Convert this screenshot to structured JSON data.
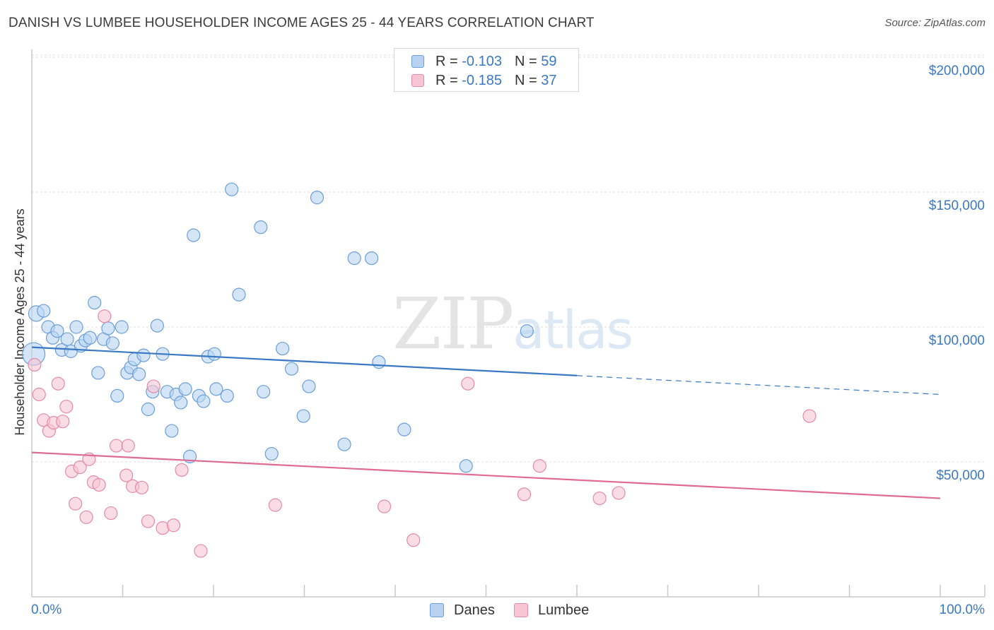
{
  "title": "DANISH VS LUMBEE HOUSEHOLDER INCOME AGES 25 - 44 YEARS CORRELATION CHART",
  "source": "Source: ZipAtlas.com",
  "watermark": {
    "zip": "ZIP",
    "atlas": "atlas"
  },
  "legend": {
    "r_label": "R =",
    "n_label": "N =",
    "danes": {
      "r": "-0.103",
      "n": "59"
    },
    "lumbee": {
      "r": "-0.185",
      "n": "37"
    }
  },
  "colors": {
    "danes_fill": "#b8d3f2",
    "danes_stroke": "#6a9ed8",
    "danes_line": "#3a78c4",
    "lumbee_fill": "#f7c4d4",
    "lumbee_stroke": "#e38aa8",
    "lumbee_line": "#e06a93",
    "axis_label": "#3a78c4",
    "grid": "#dddddd"
  },
  "chart_data": {
    "type": "scatter",
    "title": "DANISH VS LUMBEE HOUSEHOLDER INCOME AGES 25 - 44 YEARS CORRELATION CHART",
    "xlabel": "",
    "ylabel": "Householder Income Ages 25 - 44 years",
    "xlim": [
      0,
      100
    ],
    "ylim": [
      0,
      205000
    ],
    "x_tick_labels": [
      "0.0%",
      "100.0%"
    ],
    "y_ticks": [
      50000,
      100000,
      150000,
      200000
    ],
    "y_tick_labels": [
      "$50,000",
      "$100,000",
      "$150,000",
      "$200,000"
    ],
    "grid": true,
    "legend_position": "top-center",
    "series": [
      {
        "name": "Danes",
        "r": -0.103,
        "n": 59,
        "trend": {
          "x0": 0,
          "y0": 92500,
          "x1": 60,
          "y1": 82000,
          "dash_x1": 100,
          "dash_y1": 75000
        },
        "points": [
          [
            0.2,
            90000,
            16
          ],
          [
            0.5,
            105000,
            11
          ],
          [
            1.3,
            106000,
            9
          ],
          [
            1.8,
            100000,
            9
          ],
          [
            2.3,
            96000,
            9
          ],
          [
            2.8,
            98500,
            9
          ],
          [
            3.3,
            91500,
            9
          ],
          [
            3.9,
            95500,
            9
          ],
          [
            4.3,
            91000,
            9
          ],
          [
            4.9,
            100000,
            9
          ],
          [
            5.4,
            93000,
            9
          ],
          [
            5.9,
            95000,
            9
          ],
          [
            6.4,
            96000,
            9
          ],
          [
            6.9,
            109000,
            9
          ],
          [
            7.3,
            83000,
            9
          ],
          [
            7.9,
            95500,
            9
          ],
          [
            8.4,
            99500,
            9
          ],
          [
            8.9,
            94000,
            9
          ],
          [
            9.4,
            74500,
            9
          ],
          [
            9.9,
            100000,
            9
          ],
          [
            10.5,
            83000,
            9
          ],
          [
            10.9,
            85000,
            9
          ],
          [
            11.3,
            88000,
            9
          ],
          [
            11.8,
            82500,
            9
          ],
          [
            12.3,
            89500,
            9
          ],
          [
            12.8,
            69500,
            9
          ],
          [
            13.3,
            76000,
            9
          ],
          [
            13.8,
            100500,
            9
          ],
          [
            14.4,
            90000,
            9
          ],
          [
            14.9,
            76000,
            9
          ],
          [
            15.4,
            61500,
            9
          ],
          [
            15.9,
            75000,
            9
          ],
          [
            16.4,
            72000,
            9
          ],
          [
            16.9,
            77000,
            9
          ],
          [
            17.4,
            52000,
            9
          ],
          [
            17.8,
            134000,
            9
          ],
          [
            18.4,
            74500,
            9
          ],
          [
            18.9,
            72500,
            9
          ],
          [
            19.4,
            89000,
            9
          ],
          [
            20.1,
            90000,
            9
          ],
          [
            20.3,
            77000,
            9
          ],
          [
            21.5,
            74500,
            9
          ],
          [
            22.0,
            151000,
            9
          ],
          [
            22.8,
            112000,
            9
          ],
          [
            25.2,
            137000,
            9
          ],
          [
            25.5,
            76000,
            9
          ],
          [
            26.4,
            53000,
            9
          ],
          [
            27.6,
            92000,
            9
          ],
          [
            28.6,
            84500,
            9
          ],
          [
            29.9,
            67000,
            9
          ],
          [
            30.5,
            78000,
            9
          ],
          [
            31.4,
            148000,
            9
          ],
          [
            34.4,
            56500,
            9
          ],
          [
            35.5,
            125500,
            9
          ],
          [
            37.4,
            125500,
            9
          ],
          [
            38.2,
            87000,
            9
          ],
          [
            41.0,
            62000,
            9
          ],
          [
            47.8,
            48500,
            9
          ],
          [
            54.5,
            98500,
            9
          ]
        ]
      },
      {
        "name": "Lumbee",
        "r": -0.185,
        "n": 37,
        "trend": {
          "x0": 0,
          "y0": 53500,
          "x1": 100,
          "y1": 36500
        },
        "points": [
          [
            0.3,
            86000,
            9
          ],
          [
            0.8,
            75000,
            9
          ],
          [
            1.3,
            65500,
            9
          ],
          [
            1.9,
            61500,
            9
          ],
          [
            2.4,
            64500,
            9
          ],
          [
            2.9,
            79000,
            9
          ],
          [
            3.4,
            65000,
            9
          ],
          [
            3.8,
            70500,
            9
          ],
          [
            4.4,
            46500,
            9
          ],
          [
            4.8,
            34500,
            9
          ],
          [
            5.3,
            48000,
            9
          ],
          [
            6.0,
            29500,
            9
          ],
          [
            6.3,
            51000,
            9
          ],
          [
            6.8,
            42500,
            9
          ],
          [
            7.4,
            41500,
            9
          ],
          [
            8.0,
            104000,
            9
          ],
          [
            8.7,
            31000,
            9
          ],
          [
            9.3,
            56000,
            9
          ],
          [
            10.6,
            56000,
            9
          ],
          [
            10.4,
            45000,
            9
          ],
          [
            11.1,
            41000,
            9
          ],
          [
            12.1,
            40500,
            9
          ],
          [
            12.8,
            28000,
            9
          ],
          [
            13.4,
            78000,
            9
          ],
          [
            14.4,
            25500,
            9
          ],
          [
            15.6,
            26500,
            9
          ],
          [
            16.5,
            47000,
            9
          ],
          [
            18.6,
            17000,
            9
          ],
          [
            26.8,
            34000,
            9
          ],
          [
            38.8,
            33500,
            9
          ],
          [
            42.0,
            21000,
            9
          ],
          [
            48.0,
            79000,
            9
          ],
          [
            54.2,
            38000,
            9
          ],
          [
            55.9,
            48500,
            9
          ],
          [
            62.5,
            36500,
            9
          ],
          [
            64.6,
            38500,
            9
          ],
          [
            85.6,
            67000,
            9
          ]
        ]
      }
    ]
  }
}
